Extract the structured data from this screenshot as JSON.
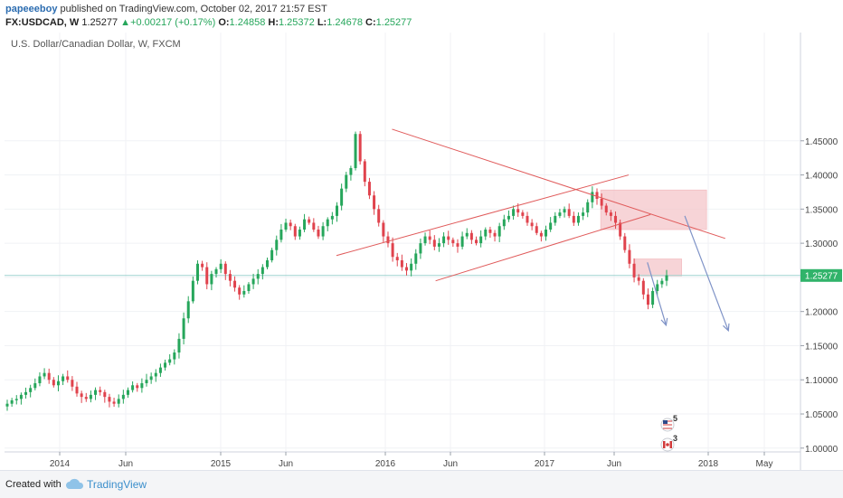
{
  "header": {
    "author": "papeeeboy",
    "published_text": "published on TradingView.com, October 02, 2017 21:57 EST",
    "symbol": "FX:USDCAD, W",
    "last": "1.25277",
    "change": "+0.00217 (+0.17%)",
    "open_label": "O:",
    "open": "1.24858",
    "high_label": "H:",
    "high": "1.25372",
    "low_label": "L:",
    "low": "1.24678",
    "close_label": "C:",
    "close": "1.25277"
  },
  "chart_data": {
    "type": "candlestick",
    "title": "U.S. Dollar/Canadian Dollar, W, FXCM",
    "x_tick_labels": [
      "2014",
      "Jun",
      "2015",
      "Jun",
      "2016",
      "Jun",
      "2017",
      "Jun",
      "2018",
      "May"
    ],
    "y_tick_labels": [
      "1.45000",
      "1.40000",
      "1.35000",
      "1.30000",
      "1.25000",
      "1.20000",
      "1.15000",
      "1.10000",
      "1.05000",
      "1.00000"
    ],
    "ylim": [
      0.99,
      1.495
    ],
    "last_price_label": "1.25277",
    "colors": {
      "up": "#26a65b",
      "down": "#e0434d",
      "trendline": "#e05a5a",
      "zone": "#f4c6c9",
      "arrow": "#7f93c7",
      "price_line": "#9fd3d0"
    },
    "weekly_closes": [
      1.065,
      1.07,
      1.072,
      1.078,
      1.082,
      1.088,
      1.095,
      1.105,
      1.11,
      1.1,
      1.092,
      1.098,
      1.105,
      1.1,
      1.09,
      1.08,
      1.075,
      1.072,
      1.078,
      1.085,
      1.082,
      1.075,
      1.068,
      1.065,
      1.072,
      1.078,
      1.085,
      1.092,
      1.088,
      1.095,
      1.1,
      1.105,
      1.11,
      1.118,
      1.125,
      1.13,
      1.14,
      1.16,
      1.19,
      1.215,
      1.245,
      1.27,
      1.265,
      1.24,
      1.255,
      1.262,
      1.27,
      1.255,
      1.245,
      1.235,
      1.225,
      1.23,
      1.24,
      1.248,
      1.255,
      1.265,
      1.275,
      1.29,
      1.305,
      1.32,
      1.33,
      1.325,
      1.31,
      1.32,
      1.335,
      1.33,
      1.32,
      1.31,
      1.325,
      1.335,
      1.34,
      1.355,
      1.38,
      1.4,
      1.41,
      1.46,
      1.42,
      1.39,
      1.37,
      1.35,
      1.33,
      1.31,
      1.3,
      1.28,
      1.275,
      1.265,
      1.26,
      1.27,
      1.285,
      1.3,
      1.31,
      1.305,
      1.295,
      1.3,
      1.31,
      1.305,
      1.3,
      1.295,
      1.31,
      1.315,
      1.305,
      1.3,
      1.31,
      1.32,
      1.315,
      1.31,
      1.325,
      1.335,
      1.34,
      1.35,
      1.345,
      1.34,
      1.33,
      1.325,
      1.315,
      1.31,
      1.32,
      1.33,
      1.34,
      1.345,
      1.35,
      1.34,
      1.33,
      1.34,
      1.345,
      1.36,
      1.375,
      1.365,
      1.355,
      1.345,
      1.34,
      1.33,
      1.31,
      1.29,
      1.27,
      1.25,
      1.245,
      1.225,
      1.21,
      1.23,
      1.24,
      1.245,
      1.253
    ],
    "drawings": {
      "descending_trendline": [
        [
          "2016-01-18",
          1.467
        ],
        [
          "2018-02-05",
          1.307
        ]
      ],
      "channel_upper": [
        [
          "2015-09-15",
          1.282
        ],
        [
          "2017-07-03",
          1.4
        ]
      ],
      "channel_lower": [
        [
          "2016-04-25",
          1.245
        ],
        [
          "2017-08-21",
          1.342
        ]
      ],
      "resistance_zone_1": {
        "from": "2017-05-01",
        "to": "2017-12-25",
        "low": 1.32,
        "high": 1.378
      },
      "resistance_zone_2": {
        "from": "2017-07-17",
        "to": "2017-10-30",
        "low": 1.252,
        "high": 1.277
      },
      "forecast_arrows": [
        [
          [
            "2017-08-14",
            1.272
          ],
          [
            "2017-09-25",
            1.18
          ]
        ],
        [
          [
            "2017-11-06",
            1.34
          ],
          [
            "2018-02-12",
            1.172
          ]
        ]
      ]
    },
    "events": [
      {
        "flag": "US",
        "count": "5"
      },
      {
        "flag": "CA",
        "count": "3"
      }
    ]
  },
  "footer": {
    "created_with": "Created with",
    "brand": "TradingView"
  }
}
